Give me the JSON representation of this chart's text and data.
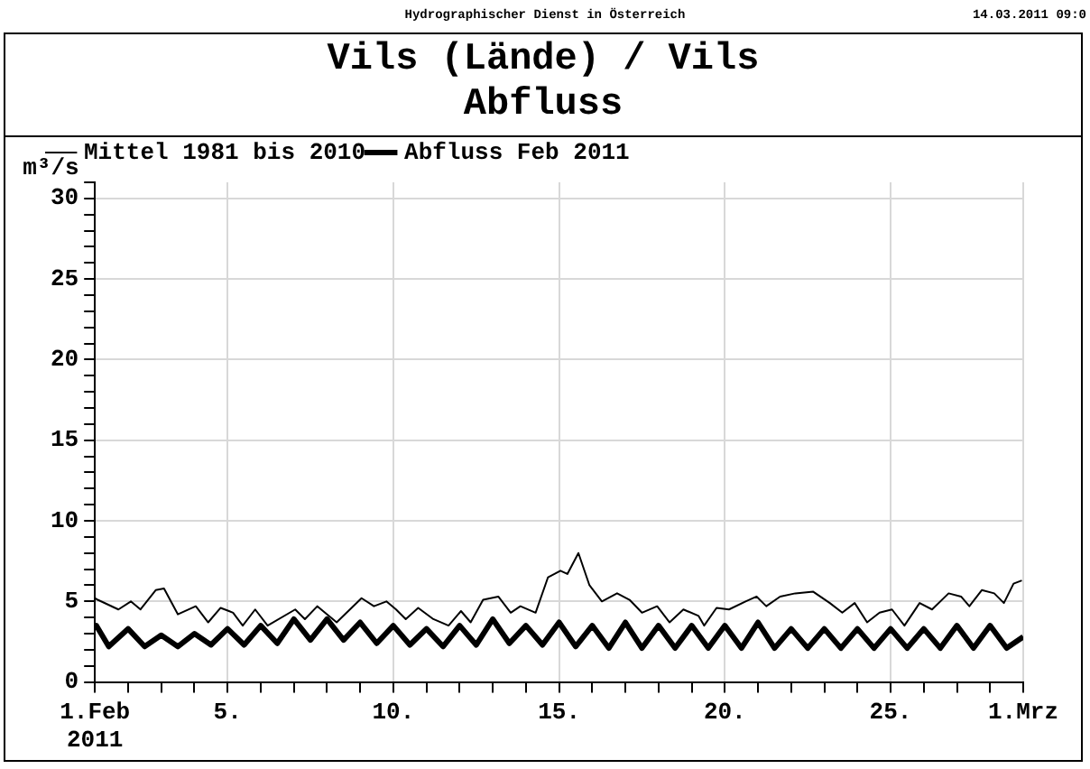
{
  "chart_data": {
    "type": "line",
    "title": "Vils (Lände) / Vils",
    "subtitle": "Abfluss",
    "ylabel": "m³/s",
    "annotations": [
      "Hydrographischer Dienst in Österreich",
      "14.03.2011 09:0"
    ],
    "xlim": [
      "2011-02-01",
      "2011-03-01"
    ],
    "xticks": [
      {
        "value": "2011-02-01",
        "label": "1.Feb 2011"
      },
      {
        "value": "2011-02-02",
        "label": null
      },
      {
        "value": "2011-02-03",
        "label": null
      },
      {
        "value": "2011-02-04",
        "label": null
      },
      {
        "value": "2011-02-05",
        "label": "5."
      },
      {
        "value": "2011-02-06",
        "label": null
      },
      {
        "value": "2011-02-07",
        "label": null
      },
      {
        "value": "2011-02-08",
        "label": null
      },
      {
        "value": "2011-02-09",
        "label": null
      },
      {
        "value": "2011-02-10",
        "label": "10."
      },
      {
        "value": "2011-02-11",
        "label": null
      },
      {
        "value": "2011-02-12",
        "label": null
      },
      {
        "value": "2011-02-13",
        "label": null
      },
      {
        "value": "2011-02-14",
        "label": null
      },
      {
        "value": "2011-02-15",
        "label": "15."
      },
      {
        "value": "2011-02-16",
        "label": null
      },
      {
        "value": "2011-02-17",
        "label": null
      },
      {
        "value": "2011-02-18",
        "label": null
      },
      {
        "value": "2011-02-19",
        "label": null
      },
      {
        "value": "2011-02-20",
        "label": "20."
      },
      {
        "value": "2011-02-21",
        "label": null
      },
      {
        "value": "2011-02-22",
        "label": null
      },
      {
        "value": "2011-02-23",
        "label": null
      },
      {
        "value": "2011-02-24",
        "label": null
      },
      {
        "value": "2011-02-25",
        "label": "25."
      },
      {
        "value": "2011-02-26",
        "label": null
      },
      {
        "value": "2011-02-27",
        "label": null
      },
      {
        "value": "2011-02-28",
        "label": null
      },
      {
        "value": "2011-03-01",
        "label": "1.Mrz"
      }
    ],
    "ylim": [
      0,
      31
    ],
    "yticks": [
      0,
      {
        "value": 1,
        "label": null
      },
      {
        "value": 2,
        "label": null
      },
      {
        "value": 3,
        "label": null
      },
      {
        "value": 4,
        "label": null
      },
      5,
      {
        "value": 6,
        "label": null
      },
      {
        "value": 7,
        "label": null
      },
      {
        "value": 8,
        "label": null
      },
      {
        "value": 9,
        "label": null
      },
      10,
      {
        "value": 11,
        "label": null
      },
      {
        "value": 12,
        "label": null
      },
      {
        "value": 13,
        "label": null
      },
      {
        "value": 14,
        "label": null
      },
      15,
      {
        "value": 16,
        "label": null
      },
      {
        "value": 17,
        "label": null
      },
      {
        "value": 18,
        "label": null
      },
      {
        "value": 19,
        "label": null
      },
      20,
      {
        "value": 21,
        "label": null
      },
      {
        "value": 22,
        "label": null
      },
      {
        "value": 23,
        "label": null
      },
      {
        "value": 24,
        "label": null
      },
      25,
      {
        "value": 26,
        "label": null
      },
      {
        "value": 27,
        "label": null
      },
      {
        "value": 28,
        "label": null
      },
      {
        "value": 29,
        "label": null
      },
      30,
      {
        "value": 31,
        "label": null
      }
    ],
    "grid": true,
    "legend": "top left",
    "marker": "none",
    "series": [
      {
        "name": "Mittel 1981 bis 2010",
        "color": "#000000",
        "line_style": "solid",
        "x": [
          "2011-02-01T00:00",
          "2011-02-01T02:00",
          "2011-02-01T17:00",
          "2011-02-02T02:00",
          "2011-02-02T09:00",
          "2011-02-02T20:00",
          "2011-02-03T02:00",
          "2011-02-03T12:00",
          "2011-02-04T01:00",
          "2011-02-04T10:00",
          "2011-02-04T19:00",
          "2011-02-05T04:00",
          "2011-02-05T11:00",
          "2011-02-05T20:00",
          "2011-02-06T05:00",
          "2011-02-07T01:00",
          "2011-02-07T08:00",
          "2011-02-07T17:00",
          "2011-02-08T07:00",
          "2011-02-09T01:00",
          "2011-02-09T10:00",
          "2011-02-09T19:00",
          "2011-02-10T02:00",
          "2011-02-10T09:00",
          "2011-02-10T18:00",
          "2011-02-11T05:00",
          "2011-02-11T16:00",
          "2011-02-12T01:00",
          "2011-02-12T08:00",
          "2011-02-12T17:00",
          "2011-02-13T04:00",
          "2011-02-13T13:00",
          "2011-02-13T20:00",
          "2011-02-14T07:00",
          "2011-02-14T16:00",
          "2011-02-15T01:00",
          "2011-02-15T06:00",
          "2011-02-15T14:00",
          "2011-02-15T22:00",
          "2011-02-16T07:00",
          "2011-02-16T18:00",
          "2011-02-17T03:00",
          "2011-02-17T12:00",
          "2011-02-17T23:00",
          "2011-02-18T08:00",
          "2011-02-18T18:00",
          "2011-02-19T05:00",
          "2011-02-19T09:00",
          "2011-02-19T18:00",
          "2011-02-20T03:00",
          "2011-02-20T15:00",
          "2011-02-20T23:00",
          "2011-02-21T06:00",
          "2011-02-21T16:00",
          "2011-02-22T03:00",
          "2011-02-22T16:00",
          "2011-02-23T04:00",
          "2011-02-23T13:00",
          "2011-02-23T22:00",
          "2011-02-24T07:00",
          "2011-02-24T16:00",
          "2011-02-25T01:00",
          "2011-02-25T10:00",
          "2011-02-25T21:00",
          "2011-02-26T06:00",
          "2011-02-26T18:00",
          "2011-02-27T03:00",
          "2011-02-27T09:00",
          "2011-02-27T18:00",
          "2011-02-28T03:00",
          "2011-02-28T10:00",
          "2011-02-28T17:00",
          "2011-02-28T23:00"
        ],
        "values": [
          5.2,
          5.1,
          4.5,
          5.0,
          4.5,
          5.7,
          5.8,
          4.2,
          4.7,
          3.7,
          4.6,
          4.3,
          3.5,
          4.5,
          3.5,
          4.5,
          3.9,
          4.7,
          3.7,
          5.2,
          4.7,
          5.0,
          4.5,
          3.9,
          4.6,
          3.9,
          3.5,
          4.4,
          3.7,
          5.1,
          5.3,
          4.3,
          4.7,
          4.3,
          6.5,
          6.9,
          6.7,
          8.0,
          6.0,
          5.0,
          5.5,
          5.1,
          4.3,
          4.7,
          3.7,
          4.5,
          4.1,
          3.5,
          4.6,
          4.5,
          5.0,
          5.3,
          4.7,
          5.3,
          5.5,
          5.6,
          4.9,
          4.3,
          4.9,
          3.7,
          4.3,
          4.5,
          3.5,
          4.9,
          4.5,
          5.5,
          5.3,
          4.7,
          5.7,
          5.5,
          4.9,
          6.1,
          6.3
        ]
      },
      {
        "name": "Abfluss Feb 2011",
        "color": "#000000",
        "line_style": "solid",
        "x": [
          "2011-02-01T00:00",
          "2011-02-01T01:00",
          "2011-02-01T10:00",
          "2011-02-02T00:00",
          "2011-02-02T12:00",
          "2011-02-03T00:00",
          "2011-02-03T12:00",
          "2011-02-04T00:00",
          "2011-02-04T12:00",
          "2011-02-05T00:00",
          "2011-02-05T12:00",
          "2011-02-06T00:00",
          "2011-02-06T12:00",
          "2011-02-07T00:00",
          "2011-02-07T12:00",
          "2011-02-08T00:00",
          "2011-02-08T12:00",
          "2011-02-09T00:00",
          "2011-02-09T12:00",
          "2011-02-10T00:00",
          "2011-02-10T12:00",
          "2011-02-11T00:00",
          "2011-02-11T12:00",
          "2011-02-12T00:00",
          "2011-02-12T12:00",
          "2011-02-13T00:00",
          "2011-02-13T12:00",
          "2011-02-14T00:00",
          "2011-02-14T12:00",
          "2011-02-15T00:00",
          "2011-02-15T12:00",
          "2011-02-16T00:00",
          "2011-02-16T12:00",
          "2011-02-17T00:00",
          "2011-02-17T12:00",
          "2011-02-18T00:00",
          "2011-02-18T12:00",
          "2011-02-19T00:00",
          "2011-02-19T12:00",
          "2011-02-20T00:00",
          "2011-02-20T12:00",
          "2011-02-21T00:00",
          "2011-02-21T12:00",
          "2011-02-22T00:00",
          "2011-02-22T12:00",
          "2011-02-23T00:00",
          "2011-02-23T12:00",
          "2011-02-24T00:00",
          "2011-02-24T12:00",
          "2011-02-25T00:00",
          "2011-02-25T12:00",
          "2011-02-26T00:00",
          "2011-02-26T12:00",
          "2011-02-27T00:00",
          "2011-02-27T12:00",
          "2011-02-28T00:00",
          "2011-02-28T12:00",
          "2011-03-01T00:00"
        ],
        "values": [
          3.4,
          3.5,
          2.2,
          3.3,
          2.2,
          2.9,
          2.2,
          3.0,
          2.3,
          3.3,
          2.3,
          3.5,
          2.4,
          3.9,
          2.6,
          3.9,
          2.6,
          3.7,
          2.4,
          3.5,
          2.3,
          3.3,
          2.2,
          3.5,
          2.3,
          3.9,
          2.4,
          3.5,
          2.3,
          3.7,
          2.2,
          3.5,
          2.1,
          3.7,
          2.1,
          3.5,
          2.1,
          3.5,
          2.1,
          3.5,
          2.1,
          3.7,
          2.1,
          3.3,
          2.1,
          3.3,
          2.1,
          3.3,
          2.1,
          3.3,
          2.1,
          3.3,
          2.1,
          3.5,
          2.1,
          3.5,
          2.1,
          2.8
        ]
      }
    ]
  }
}
